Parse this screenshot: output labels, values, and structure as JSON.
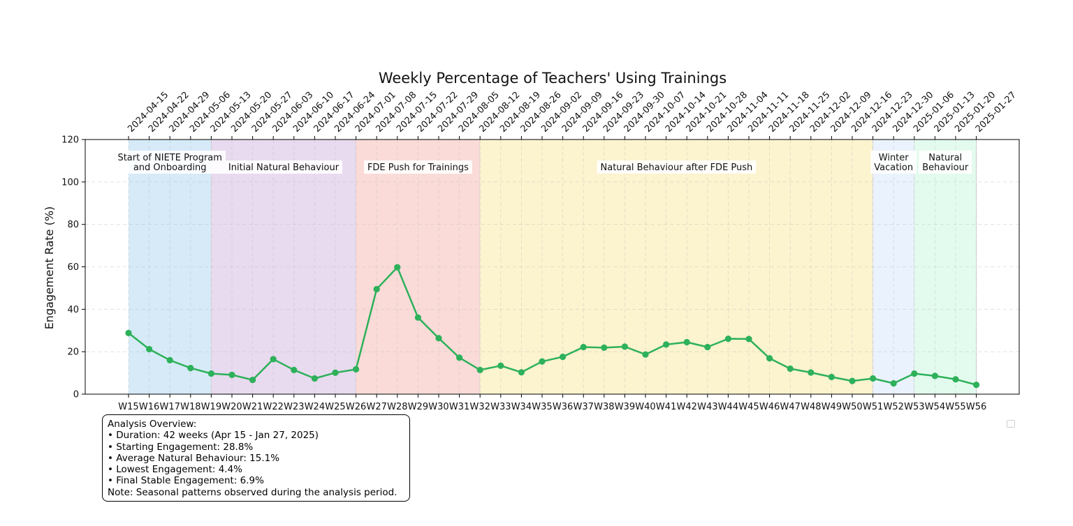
{
  "chart_data": {
    "type": "line",
    "title": "Weekly Percentage of Teachers' Using Trainings",
    "ylabel": "Engagement Rate (%)",
    "ylim": [
      0,
      120
    ],
    "yticks": [
      "0",
      "20",
      "40",
      "60",
      "80",
      "100",
      "120"
    ],
    "grid": true,
    "line_color": "#2db15a",
    "categories": [
      "W15",
      "W16",
      "W17",
      "W18",
      "W19",
      "W20",
      "W21",
      "W22",
      "W23",
      "W24",
      "W25",
      "W26",
      "W27",
      "W28",
      "W29",
      "W30",
      "W31",
      "W32",
      "W33",
      "W34",
      "W35",
      "W36",
      "W37",
      "W38",
      "W39",
      "W40",
      "W41",
      "W42",
      "W43",
      "W44",
      "W45",
      "W46",
      "W47",
      "W48",
      "W49",
      "W50",
      "W51",
      "W52",
      "W53",
      "W54",
      "W55",
      "W56"
    ],
    "top_dates": [
      "2024-04-15",
      "2024-04-22",
      "2024-04-29",
      "2024-05-06",
      "2024-05-13",
      "2024-05-20",
      "2024-05-27",
      "2024-06-03",
      "2024-06-10",
      "2024-06-17",
      "2024-06-24",
      "2024-07-01",
      "2024-07-08",
      "2024-07-15",
      "2024-07-22",
      "2024-07-29",
      "2024-08-05",
      "2024-08-12",
      "2024-08-19",
      "2024-08-26",
      "2024-09-02",
      "2024-09-09",
      "2024-09-16",
      "2024-09-23",
      "2024-09-30",
      "2024-10-07",
      "2024-10-14",
      "2024-10-21",
      "2024-10-28",
      "2024-11-04",
      "2024-11-11",
      "2024-11-18",
      "2024-11-25",
      "2024-12-02",
      "2024-12-09",
      "2024-12-16",
      "2024-12-23",
      "2024-12-30",
      "2025-01-06",
      "2025-01-13",
      "2025-01-20",
      "2025-01-27"
    ],
    "series": [
      {
        "values": [
          28.8,
          21.2,
          16.0,
          12.3,
          9.7,
          9.1,
          6.7,
          16.5,
          11.4,
          7.4,
          10.1,
          11.7,
          49.5,
          59.8,
          36.1,
          26.4,
          17.2,
          11.4,
          13.4,
          10.3,
          15.4,
          17.6,
          22.2,
          21.9,
          22.4,
          18.7,
          23.4,
          24.5,
          22.2,
          26.1,
          26.0,
          16.9,
          12.0,
          10.2,
          8.1,
          6.2,
          7.4,
          5.1,
          9.7,
          8.6,
          7.0,
          4.4
        ]
      }
    ],
    "phases": [
      {
        "label": "Start of NIETE Program\nand Onboarding",
        "start": "W15",
        "end": "W19",
        "color": "#d6eaf8"
      },
      {
        "label": "Initial Natural Behaviour",
        "start": "W19",
        "end": "W26",
        "color": "#e8daef"
      },
      {
        "label": "FDE Push for Trainings",
        "start": "W26",
        "end": "W32",
        "color": "#fadbd8"
      },
      {
        "label": "Natural Behaviour after FDE Push",
        "start": "W32",
        "end": "W51",
        "color": "#fcf3cf"
      },
      {
        "label": "Winter\nVacation",
        "start": "W51",
        "end": "W53",
        "color": "#eaf2fd"
      },
      {
        "label": "Natural\nBehaviour",
        "start": "W53",
        "end": "W56",
        "color": "#e3fbee"
      }
    ]
  },
  "overview": {
    "heading": "Analysis Overview:",
    "lines": [
      "• Duration: 42 weeks (Apr 15 - Jan 27, 2025)",
      "• Starting Engagement: 28.8%",
      "• Average Natural Behaviour: 15.1%",
      "• Lowest Engagement: 4.4%",
      "• Final Stable Engagement: 6.9%"
    ],
    "note": "Note: Seasonal patterns observed during the analysis period."
  }
}
